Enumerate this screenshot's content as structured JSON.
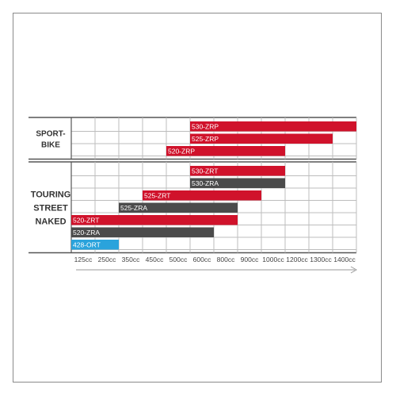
{
  "chart_data": {
    "type": "bar",
    "orientation": "horizontal-range",
    "x_ticks": [
      "125cc",
      "250cc",
      "350cc",
      "450cc",
      "500cc",
      "600cc",
      "800cc",
      "900cc",
      "1000cc",
      "1200cc",
      "1300cc",
      "1400cc"
    ],
    "groups": [
      {
        "label_lines": [
          "SPORT-",
          "BIKE"
        ],
        "rows": [
          {
            "label": "530-ZRP",
            "start": "600cc",
            "end": "1400cc",
            "color": "#d0122b"
          },
          {
            "label": "525-ZRP",
            "start": "600cc",
            "end": "1300cc",
            "color": "#d0122b"
          },
          {
            "label": "520-ZRP",
            "start": "500cc",
            "end": "1000cc",
            "color": "#d0122b"
          }
        ]
      },
      {
        "label_lines": [
          "TOURING",
          "STREET",
          "NAKED"
        ],
        "rows": [
          {
            "label": "530-ZRT",
            "start": "600cc",
            "end": "1000cc",
            "color": "#d0122b"
          },
          {
            "label": "530-ZRA",
            "start": "600cc",
            "end": "1000cc",
            "color": "#4b4b4b"
          },
          {
            "label": "525-ZRT",
            "start": "450cc",
            "end": "900cc",
            "color": "#d0122b"
          },
          {
            "label": "525-ZRA",
            "start": "350cc",
            "end": "800cc",
            "color": "#4b4b4b"
          },
          {
            "label": "520-ZRT",
            "start": "125cc",
            "end": "800cc",
            "color": "#d0122b"
          },
          {
            "label": "520-ZRA",
            "start": "125cc",
            "end": "600cc",
            "color": "#4b4b4b"
          },
          {
            "label": "428-ORT",
            "start": "125cc",
            "end": "250cc",
            "color": "#2aa3dc"
          }
        ]
      }
    ],
    "grid": true,
    "axis_color": "#555555",
    "grid_color": "#bdbdbd",
    "arrow_color": "#9a9a9a"
  }
}
